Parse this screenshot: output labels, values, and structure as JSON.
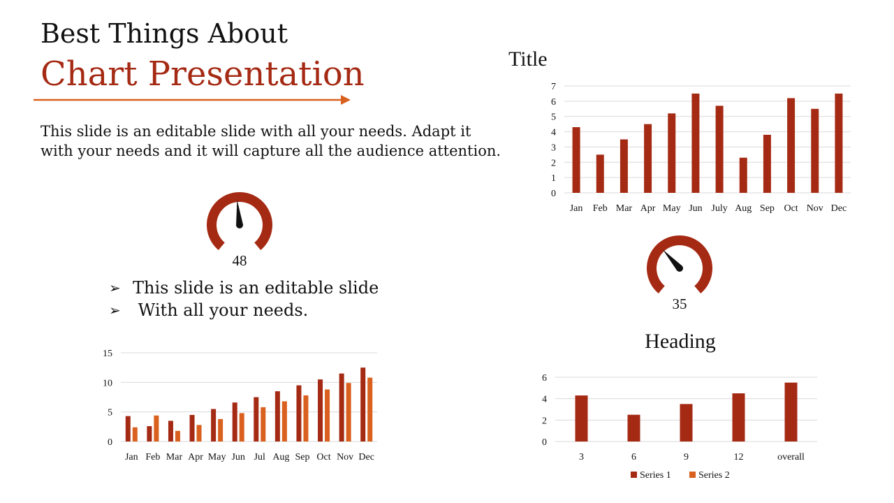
{
  "heading": {
    "line1": "Best Things About",
    "line2": "Chart Presentation"
  },
  "body_text": "This slide is an editable slide with all your needs. Adapt it with your needs and it will capture all the audience attention.",
  "bullets": [
    {
      "icon": "arrow-bullet-icon",
      "glyph": "➢",
      "text": "This slide is an editable slide"
    },
    {
      "icon": "arrow-bullet-icon",
      "glyph": "➢",
      "text": " With all your needs."
    }
  ],
  "colors": {
    "accent": "#A52A14",
    "accent2": "#D9601E",
    "arrow": "#D9601E",
    "needle": "#111111",
    "grid": "#D9D9D9",
    "text": "#111111"
  },
  "chart_data": [
    {
      "type": "bar",
      "title": "Title",
      "categories": [
        "Jan",
        "Feb",
        "Mar",
        "Apr",
        "May",
        "Jun",
        "July",
        "Aug",
        "Sep",
        "Oct",
        "Nov",
        "Dec"
      ],
      "series": [
        {
          "values": [
            4.3,
            2.5,
            3.5,
            4.5,
            5.2,
            6.5,
            5.7,
            2.3,
            3.8,
            6.2,
            5.5,
            6.5
          ]
        }
      ],
      "ylim": [
        0,
        7
      ],
      "yticks": [
        0,
        1,
        2,
        3,
        4,
        5,
        6,
        7
      ],
      "grid": true,
      "legend": "none"
    },
    {
      "type": "gauge",
      "value": 48,
      "label": "48"
    },
    {
      "type": "gauge",
      "value": 35,
      "label": "35"
    },
    {
      "type": "bar",
      "title": "",
      "categories": [
        "Jan",
        "Feb",
        "Mar",
        "Apr",
        "May",
        "Jun",
        "Jul",
        "Aug",
        "Sep",
        "Oct",
        "Nov",
        "Dec"
      ],
      "series": [
        {
          "values": [
            4.3,
            2.6,
            3.5,
            4.5,
            5.5,
            6.6,
            7.5,
            8.5,
            9.5,
            10.5,
            11.5,
            12.5
          ]
        },
        {
          "values": [
            2.4,
            4.4,
            1.8,
            2.8,
            3.8,
            4.8,
            5.8,
            6.8,
            7.8,
            8.8,
            9.9,
            10.8
          ]
        }
      ],
      "ylim": [
        0,
        15
      ],
      "yticks": [
        0,
        5,
        10,
        15
      ],
      "grid": true,
      "legend": "none"
    },
    {
      "type": "bar",
      "title": "Heading",
      "categories": [
        "3",
        "6",
        "9",
        "12",
        "overall"
      ],
      "series": [
        {
          "name": "Series 1",
          "values": [
            4.3,
            2.5,
            3.5,
            4.5,
            5.5
          ]
        },
        {
          "name": "Series 2",
          "values": [
            0,
            0,
            0,
            0,
            0
          ]
        }
      ],
      "ylim": [
        0,
        6
      ],
      "yticks": [
        0,
        2,
        4,
        6
      ],
      "grid": true,
      "legend": "bottom"
    }
  ]
}
